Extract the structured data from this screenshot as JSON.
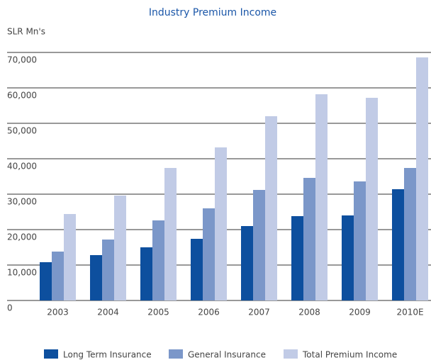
{
  "chart_data": {
    "type": "bar",
    "title": "Industry Premium Income",
    "y_label": "SLR Mn's",
    "categories": [
      "2003",
      "2004",
      "2005",
      "2006",
      "2007",
      "2008",
      "2009",
      "2010E"
    ],
    "series": [
      {
        "name": "Long Term Insurance",
        "color": "#0d4f9e",
        "values": [
          10800,
          12800,
          15000,
          17400,
          21000,
          23800,
          24000,
          31400
        ]
      },
      {
        "name": "General Insurance",
        "color": "#7b97c9",
        "values": [
          13800,
          17200,
          22600,
          26000,
          31200,
          34600,
          33600,
          37400
        ]
      },
      {
        "name": "Total Premium Income",
        "color": "#c1cbe6",
        "values": [
          24400,
          29600,
          37400,
          43200,
          52000,
          58200,
          57200,
          68600
        ]
      }
    ],
    "ylim": [
      0,
      70000
    ],
    "yticks": [
      0,
      {
        "value": 10000,
        "label": "10,000"
      },
      {
        "value": 20000,
        "label": "20,000"
      },
      {
        "value": 30000,
        "label": "30,000"
      },
      {
        "value": 40000,
        "label": "40,000"
      },
      {
        "value": 50000,
        "label": "50,000"
      },
      {
        "value": 60000,
        "label": "60,000"
      },
      {
        "value": 70000,
        "label": "70,000"
      }
    ],
    "grid": true,
    "legend": "bottom"
  }
}
